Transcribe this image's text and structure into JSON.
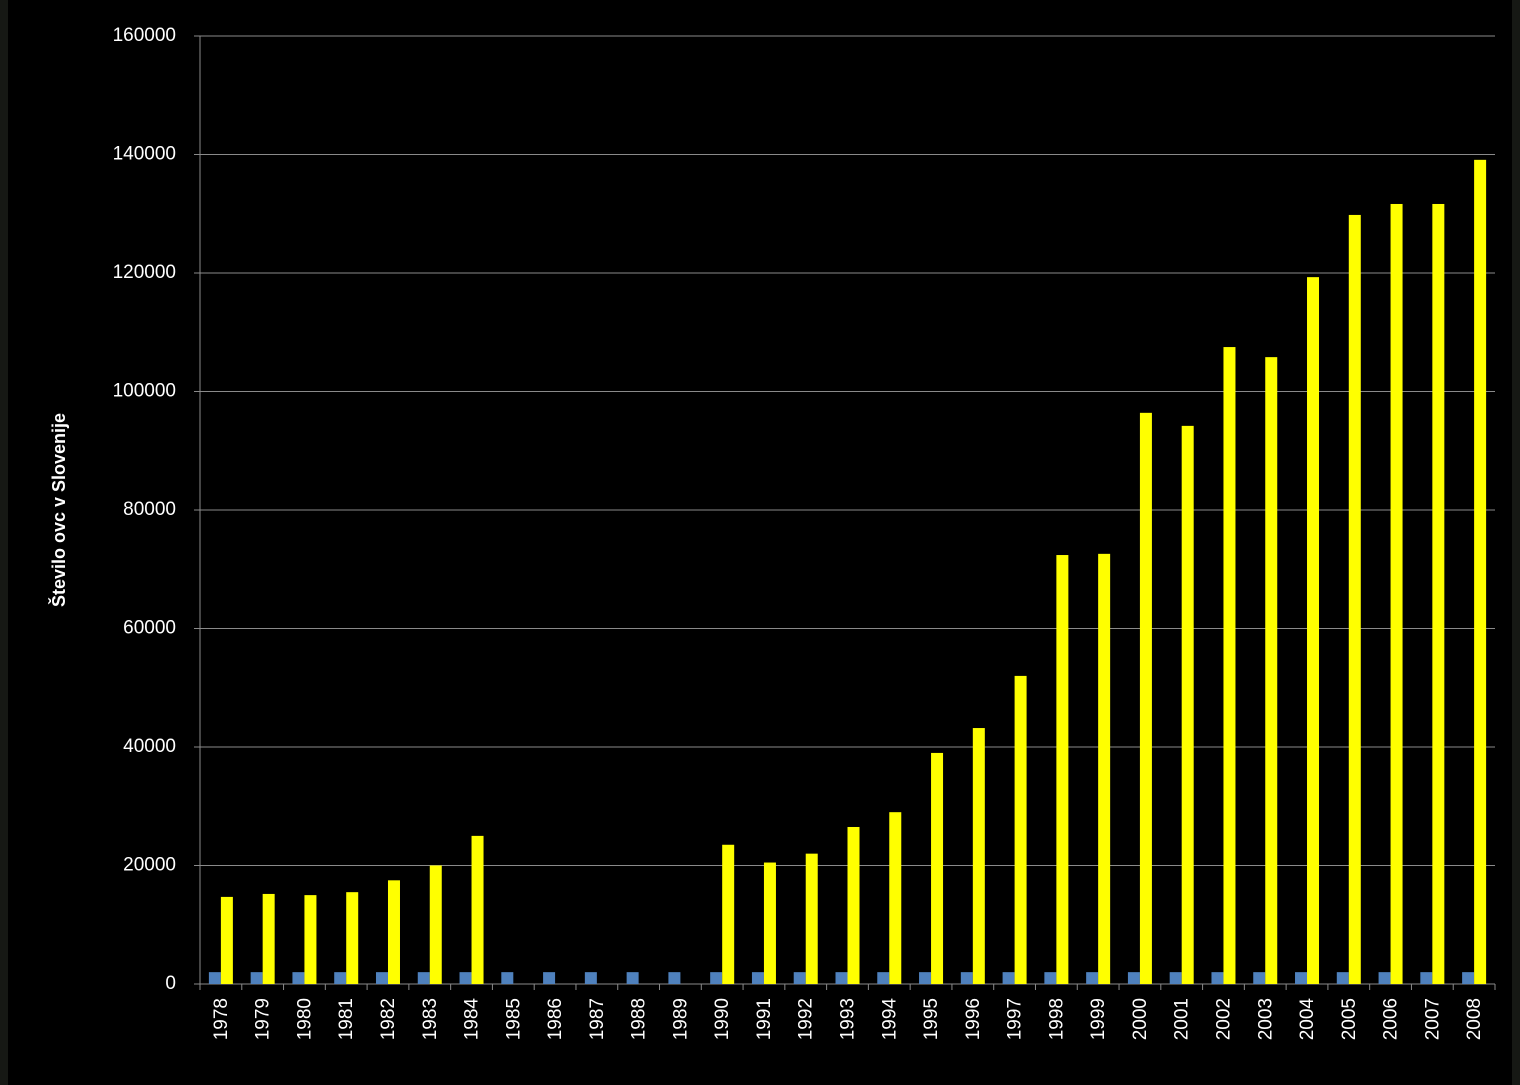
{
  "chart_data": {
    "type": "bar",
    "y_label": "Število ovc v Slovenije",
    "categories": [
      "1978",
      "1979",
      "1980",
      "1981",
      "1982",
      "1983",
      "1984",
      "1985",
      "1986",
      "1987",
      "1988",
      "1989",
      "1990",
      "1991",
      "1992",
      "1993",
      "1994",
      "1995",
      "1996",
      "1997",
      "1998",
      "1999",
      "2000",
      "2001",
      "2002",
      "2003",
      "2004",
      "2005",
      "2006",
      "2007",
      "2008"
    ],
    "series": [
      {
        "color": "#4f81bd",
        "values": [
          2000,
          2000,
          2000,
          2000,
          2000,
          2000,
          2000,
          2000,
          2000,
          2000,
          2000,
          2000,
          2000,
          2000,
          2000,
          2000,
          2000,
          2000,
          2000,
          2000,
          2000,
          2000,
          2000,
          2000,
          2000,
          2000,
          2000,
          2000,
          2000,
          2000,
          2000
        ]
      },
      {
        "color": "#ffff00",
        "values": [
          14700,
          15200,
          15000,
          15500,
          17500,
          20000,
          25000,
          null,
          null,
          null,
          null,
          null,
          23500,
          20500,
          22000,
          26500,
          29000,
          39000,
          43200,
          52000,
          72400,
          72600,
          96400,
          94200,
          107500,
          105800,
          119300,
          129800,
          131650,
          131650,
          139100
        ]
      }
    ],
    "ylim": [
      0,
      160000
    ],
    "yticks": [
      0,
      20000,
      40000,
      60000,
      80000,
      100000,
      120000,
      140000,
      160000
    ],
    "grid": true
  }
}
